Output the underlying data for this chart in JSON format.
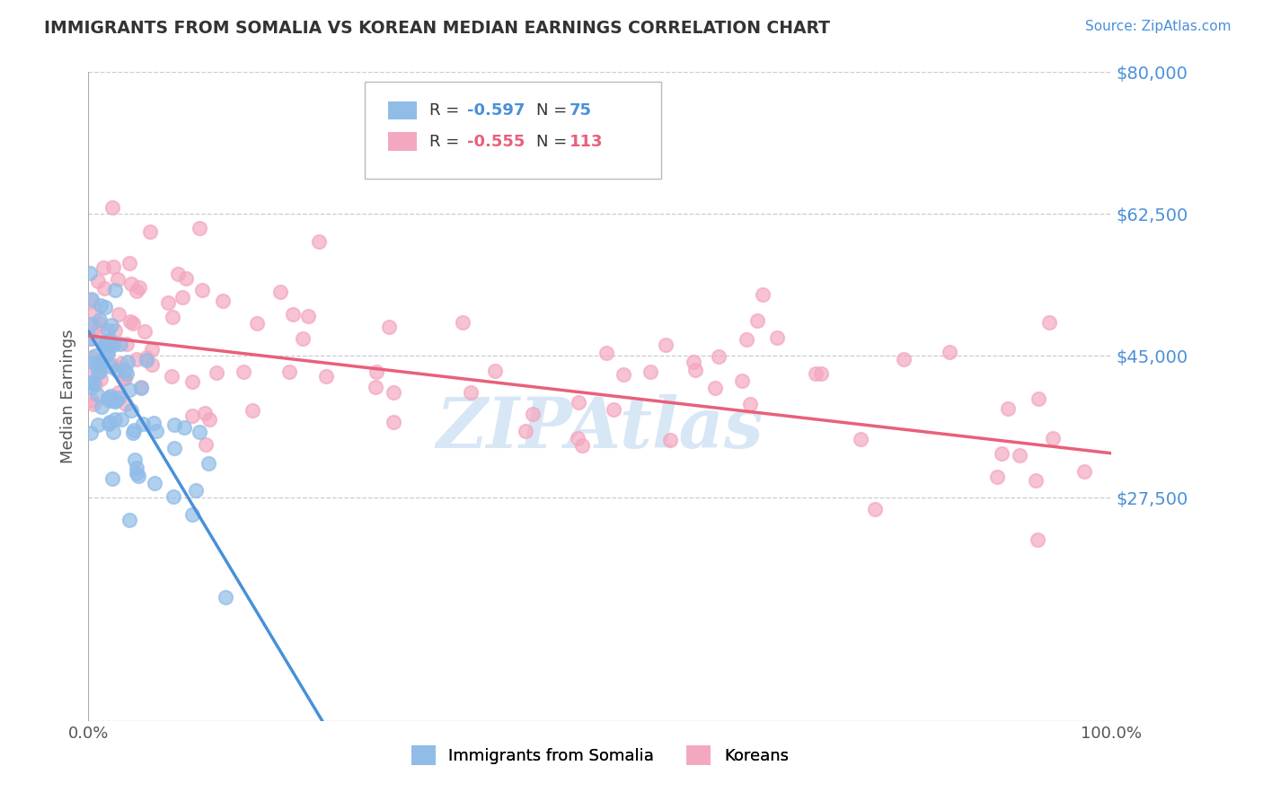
{
  "title": "IMMIGRANTS FROM SOMALIA VS KOREAN MEDIAN EARNINGS CORRELATION CHART",
  "source": "Source: ZipAtlas.com",
  "ylabel": "Median Earnings",
  "ytick_vals": [
    0,
    27500,
    45000,
    62500,
    80000
  ],
  "ytick_labels": [
    "",
    "$27,500",
    "$45,000",
    "$62,500",
    "$80,000"
  ],
  "xlim": [
    0,
    100
  ],
  "ylim": [
    0,
    80000
  ],
  "watermark": "ZIPAtlas",
  "series1_color": "#90bce8",
  "series2_color": "#f4a8c0",
  "line1_color": "#4a90d9",
  "line2_color": "#e8607a",
  "text_color_blue": "#4a90d9",
  "grid_color": "#cccccc",
  "legend_r1": "R = ",
  "legend_rv1": "-0.597",
  "legend_n1": "N = ",
  "legend_nv1": "75",
  "legend_r2": "R = ",
  "legend_rv2": "-0.555",
  "legend_n2": "N = ",
  "legend_nv2": "113",
  "somalia_slope": -2100,
  "somalia_intercept": 48000,
  "somalia_x_max": 25,
  "korean_slope": -145,
  "korean_intercept": 47500,
  "korean_x_max": 100
}
